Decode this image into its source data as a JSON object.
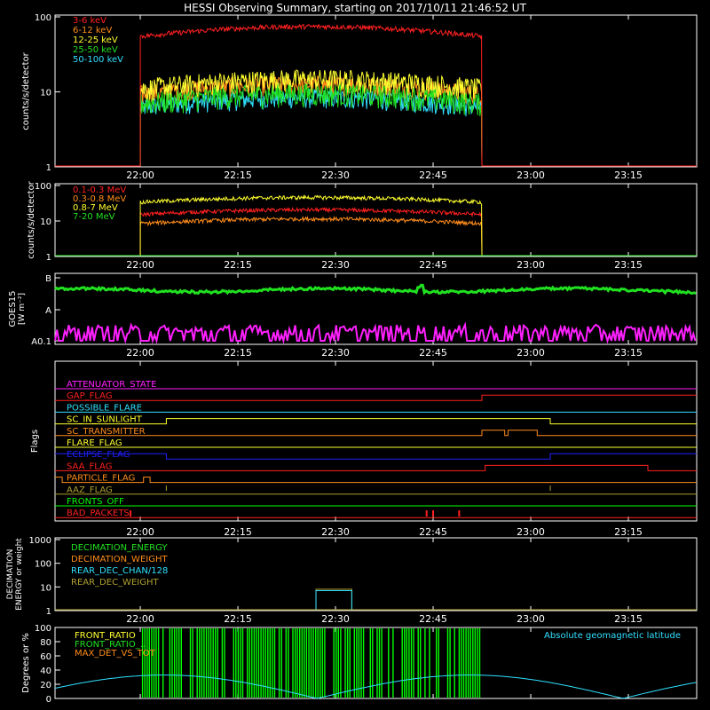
{
  "title": "HESSI Observing Summary, starting on 2017/10/11 21:46:52 UT",
  "time_ticks": [
    "22:00",
    "22:15",
    "22:30",
    "22:45",
    "23:00",
    "23:15"
  ],
  "time_tick_minutes": [
    0,
    15,
    30,
    45,
    60,
    75
  ],
  "time_range_minutes": [
    -13.1,
    85.5
  ],
  "colors": {
    "red": "#ff2020",
    "orange": "#ff8c1a",
    "yellow": "#ffff30",
    "green": "#20e020",
    "cyan": "#30e0ff",
    "magenta": "#ff20ff",
    "blue": "#2020ff",
    "olive": "#b0a030",
    "bright_green": "#00ff00",
    "white": "#ffffff"
  },
  "chart_data": [
    {
      "type": "line",
      "name": "low-energy",
      "ylabel": "counts/s/detector",
      "yscale": "log",
      "ylim": [
        1,
        100
      ],
      "yticks": [
        "1",
        "10",
        "100"
      ],
      "active_minutes": [
        0,
        52.5
      ],
      "series": [
        {
          "name": "3-6 keV",
          "color": "red",
          "level": 55
        },
        {
          "name": "6-12 keV",
          "color": "orange",
          "level": 12
        },
        {
          "name": "12-25 keV",
          "color": "yellow",
          "level": 14
        },
        {
          "name": "25-50 keV",
          "color": "green",
          "level": 9
        },
        {
          "name": "50-100 keV",
          "color": "cyan",
          "level": 8
        }
      ]
    },
    {
      "type": "line",
      "name": "high-energy",
      "ylabel": "counts/s/detector",
      "yscale": "log",
      "ylim": [
        1,
        100
      ],
      "yticks": [
        "1",
        "10",
        "100"
      ],
      "active_minutes": [
        0,
        52.5
      ],
      "series": [
        {
          "name": "0.1-0.3 MeV",
          "color": "red",
          "level": 18
        },
        {
          "name": "0.3-0.8 MeV",
          "color": "orange",
          "level": 10
        },
        {
          "name": "0.8-7 MeV",
          "color": "yellow",
          "level": 40
        },
        {
          "name": "7-20 MeV",
          "color": "green",
          "level": 1
        }
      ]
    },
    {
      "type": "line",
      "name": "goes",
      "ylabel": "GOES15",
      "yunit": "[W m⁻²]",
      "yticks": [
        "A0.1",
        "A",
        "B"
      ],
      "series": [
        {
          "name": "long",
          "color": "green",
          "level": 0.8
        },
        {
          "name": "short",
          "color": "magenta",
          "level": 0.1
        }
      ]
    },
    {
      "type": "line",
      "name": "flags",
      "ylabel": "Flags",
      "series": [
        {
          "name": "ATTENUATOR_STATE",
          "color": "magenta",
          "segments": [
            [
              -13.1,
              85.5,
              0
            ]
          ]
        },
        {
          "name": "GAP_FLAG",
          "color": "red",
          "segments": [
            [
              -13.1,
              52.5,
              0
            ],
            [
              52.5,
              85.5,
              1
            ]
          ]
        },
        {
          "name": "POSSIBLE_FLARE",
          "color": "cyan",
          "segments": [
            [
              -13.1,
              85.5,
              0
            ]
          ]
        },
        {
          "name": "SC_IN_SUNLIGHT",
          "color": "yellow",
          "segments": [
            [
              -13.1,
              4,
              0
            ],
            [
              4,
              63,
              1
            ],
            [
              63,
              85.5,
              0
            ]
          ]
        },
        {
          "name": "SC_TRANSMITTER",
          "color": "orange",
          "segments": [
            [
              -13.1,
              52.5,
              0
            ],
            [
              52.5,
              56,
              1
            ],
            [
              56,
              56.5,
              0
            ],
            [
              56.5,
              61,
              1
            ],
            [
              61,
              85.5,
              0
            ]
          ]
        },
        {
          "name": "FLARE_FLAG",
          "color": "yellow",
          "segments": [
            [
              -13.1,
              85.5,
              0
            ]
          ]
        },
        {
          "name": "ECLIPSE_FLAG",
          "color": "blue",
          "segments": [
            [
              -13.1,
              4,
              1
            ],
            [
              4,
              63,
              0
            ],
            [
              63,
              85.5,
              1
            ]
          ]
        },
        {
          "name": "SAA_FLAG",
          "color": "red",
          "segments": [
            [
              -13.1,
              53,
              0
            ],
            [
              53,
              78,
              1
            ],
            [
              78,
              85.5,
              0
            ]
          ]
        },
        {
          "name": "PARTICLE_FLAG",
          "color": "orange",
          "segments": [
            [
              -13.1,
              -12,
              1
            ],
            [
              -12,
              0.5,
              0
            ],
            [
              0.5,
              1.5,
              1
            ],
            [
              1.5,
              85.5,
              0
            ]
          ]
        },
        {
          "name": "AAZ_FLAG",
          "color": "olive",
          "segments": [
            [
              -13.1,
              85.5,
              0
            ]
          ]
        },
        {
          "name": "FRONTS_OFF",
          "color": "bright_green",
          "segments": [
            [
              -13.1,
              85.5,
              0
            ]
          ]
        },
        {
          "name": "BAD_PACKETS",
          "color": "red",
          "segments": [
            [
              -13.1,
              85.5,
              0
            ]
          ]
        }
      ]
    },
    {
      "type": "line",
      "name": "decimation",
      "ylabel": "DECIMATION ENERGY or weight",
      "yscale": "log",
      "ylim": [
        1,
        1000
      ],
      "yticks": [
        "1",
        "10",
        "100",
        "1000"
      ],
      "series": [
        {
          "name": "DECIMATION_ENERGY",
          "color": "green"
        },
        {
          "name": "DECIMATION_WEIGHT",
          "color": "orange"
        },
        {
          "name": "REAR_DEC_CHAN/128",
          "color": "cyan"
        },
        {
          "name": "REAR_DEC_WEIGHT",
          "color": "olive"
        }
      ]
    },
    {
      "type": "line",
      "name": "ratios",
      "ylabel": "Degrees or %",
      "ylim": [
        0,
        100
      ],
      "yticks": [
        "0",
        "20",
        "40",
        "60",
        "80",
        "100"
      ],
      "series": [
        {
          "name": "FRONT_RATIO",
          "color": "yellow"
        },
        {
          "name": "FRONT_RATIO_...",
          "color": "green"
        },
        {
          "name": "MAX_DET_VS_TOT",
          "color": "orange"
        },
        {
          "name": "Absolute geomagnetic latitude",
          "color": "cyan"
        }
      ]
    }
  ]
}
